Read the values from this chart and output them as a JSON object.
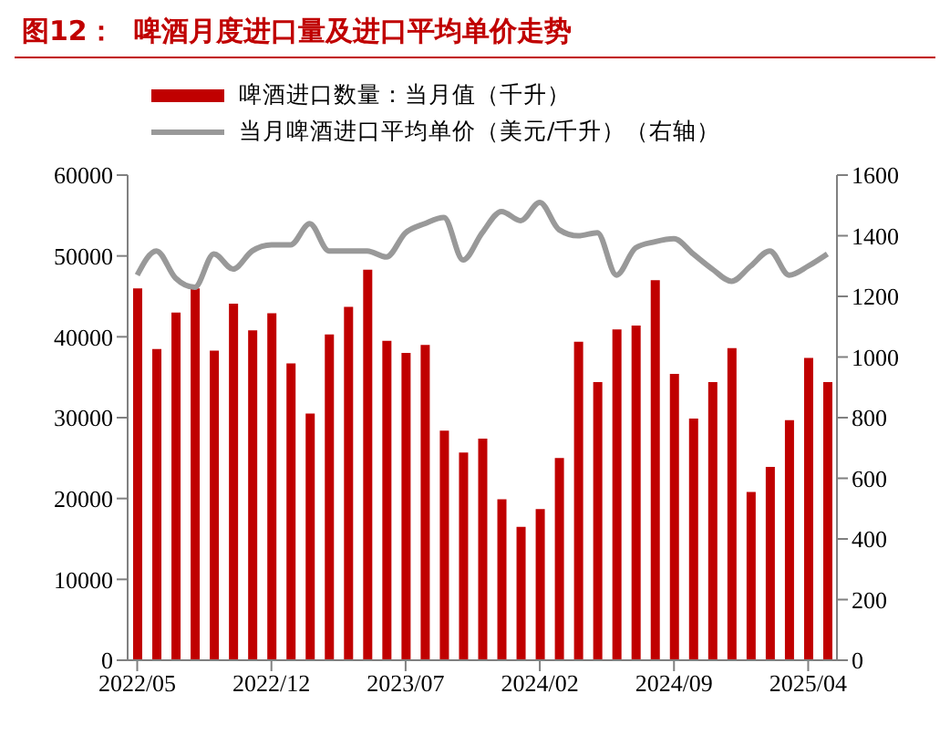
{
  "chart_data": {
    "type": "bar",
    "title": "图12：  啤酒月度进口量及进口平均单价走势",
    "categories": [
      "2022/05",
      null,
      null,
      null,
      null,
      null,
      null,
      "2022/12",
      null,
      null,
      null,
      null,
      null,
      null,
      "2023/07",
      null,
      null,
      null,
      null,
      null,
      null,
      "2024/02",
      null,
      null,
      null,
      null,
      null,
      null,
      "2024/09",
      null,
      null,
      null,
      null,
      null,
      null,
      "2025/04",
      null
    ],
    "series": [
      {
        "name": "啤酒进口数量：当月值（千升）",
        "color": "#c00000",
        "values": [
          46000,
          38500,
          43000,
          46000,
          38300,
          44100,
          40800,
          42900,
          36700,
          30500,
          40300,
          43700,
          48300,
          39500,
          38000,
          39000,
          28400,
          25700,
          27400,
          19900,
          16500,
          18700,
          25000,
          39400,
          34400,
          40900,
          41400,
          47000,
          35400,
          29900,
          34400,
          38600,
          20800,
          23900,
          29700,
          37400,
          34400
        ]
      },
      {
        "name": "当月啤酒进口平均单价（美元/千升）（右轴）",
        "type": "line",
        "axis": "y2",
        "color": "#999999",
        "values": [
          1270,
          1350,
          1260,
          1230,
          1340,
          1290,
          1350,
          1370,
          1370,
          1440,
          1350,
          1350,
          1350,
          1330,
          1410,
          1440,
          1460,
          1320,
          1410,
          1480,
          1450,
          1510,
          1420,
          1400,
          1410,
          1270,
          1360,
          1380,
          1390,
          1340,
          1290,
          1250,
          1300,
          1350,
          1270,
          1300,
          1340
        ]
      }
    ],
    "ylim": [
      0,
      60000
    ],
    "yticks": [
      0,
      10000,
      20000,
      30000,
      40000,
      50000,
      60000
    ],
    "y2lim": [
      0,
      1600
    ],
    "y2ticks": [
      0,
      200,
      400,
      600,
      800,
      1000,
      1200,
      1400,
      1600
    ],
    "legend": "top left"
  }
}
